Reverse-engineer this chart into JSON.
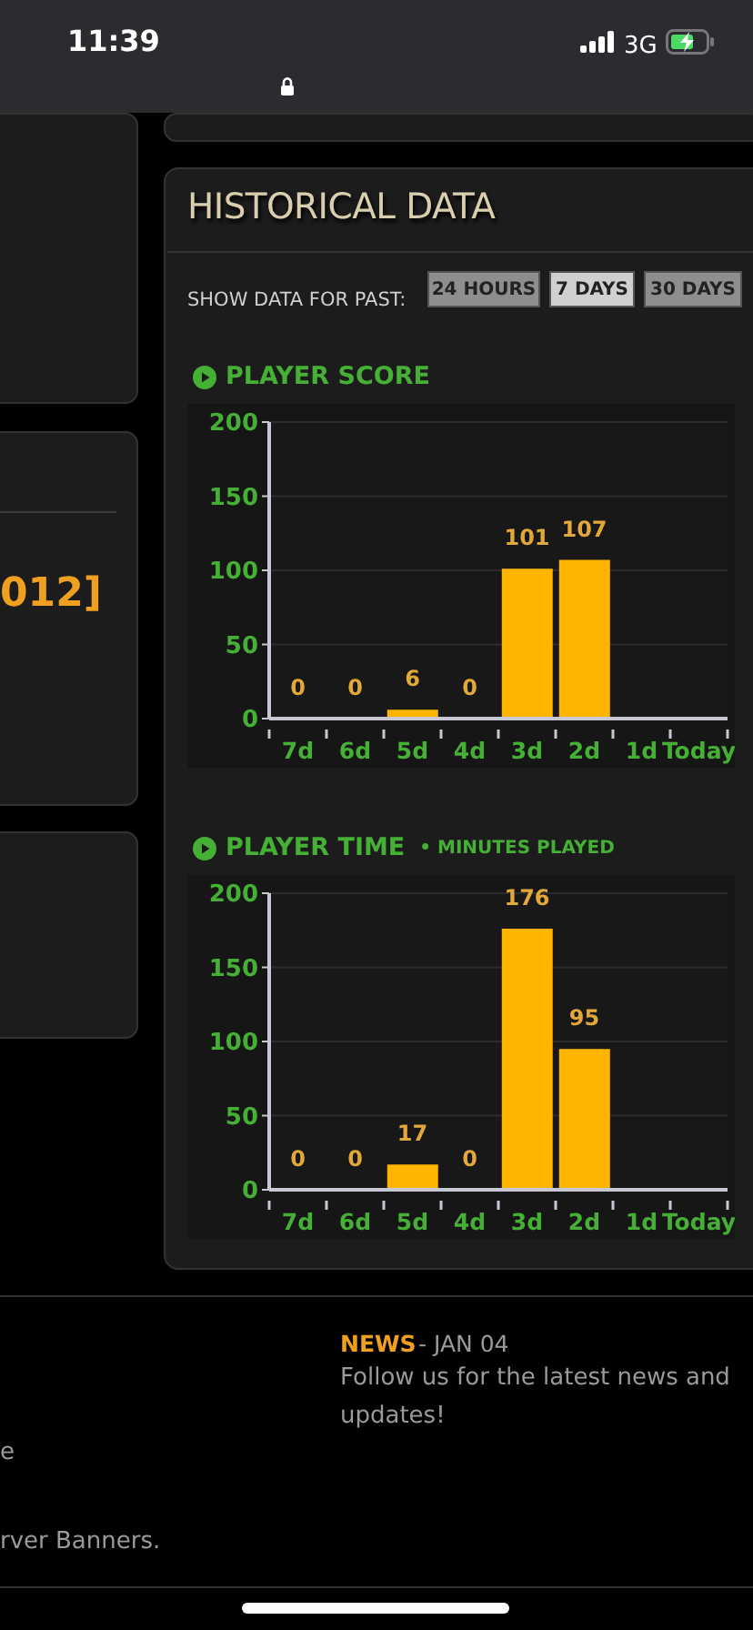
{
  "chart_data": [
    {
      "type": "bar",
      "title": "PLAYER SCORE",
      "categories": [
        "7d",
        "6d",
        "5d",
        "4d",
        "3d",
        "2d",
        "1d",
        "Today"
      ],
      "values": [
        0,
        0,
        6,
        0,
        101,
        107,
        null,
        null
      ],
      "color": "#ffb400",
      "ylim": [
        0,
        200
      ],
      "yticks": [
        0,
        50,
        100,
        150,
        200
      ],
      "grid": "y",
      "data_labels": true,
      "annotations": [
        "11:39",
        "3G",
        "012]",
        "HISTORICAL DATA",
        "SHOW DATA FOR PAST:",
        "24 HOURS",
        "7 DAYS",
        "30 DAYS"
      ]
    },
    {
      "type": "bar",
      "title": "PLAYER TIME",
      "subtitle": "• MINUTES PLAYED",
      "categories": [
        "7d",
        "6d",
        "5d",
        "4d",
        "3d",
        "2d",
        "1d",
        "Today"
      ],
      "values": [
        0,
        0,
        17,
        0,
        176,
        95,
        null,
        null
      ],
      "color": "#ffb400",
      "ylim": [
        0,
        200
      ],
      "yticks": [
        0,
        50,
        100,
        150,
        200
      ],
      "grid": "y",
      "data_labels": true,
      "annotations": [
        "NEWS",
        "- JAN 04",
        "Follow us for the latest news and updates!",
        "e",
        "rver Banners."
      ]
    }
  ]
}
